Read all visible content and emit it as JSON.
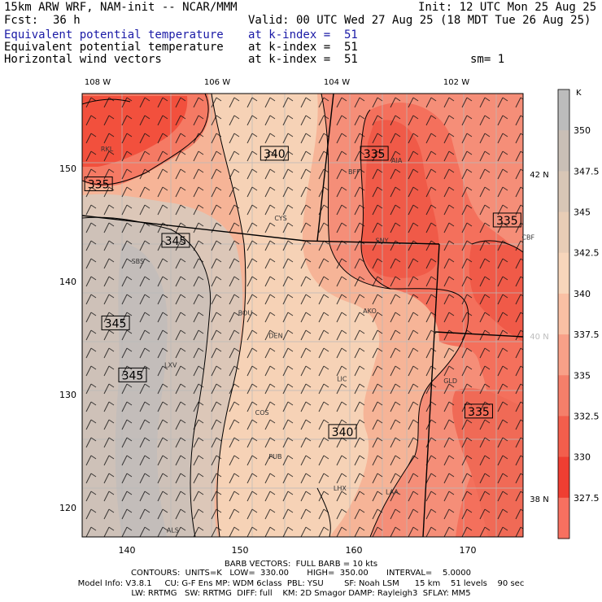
{
  "header": {
    "model_title": "15km ARW WRF, NAM-init -- NCAR/MMM",
    "init": "Init: 12 UTC Mon 25 Aug 25",
    "fcst_label": "Fcst:",
    "fcst_value": "36 h",
    "valid": "Valid: 00 UTC Wed 27 Aug 25 (18 MDT Tue 26 Aug 25)",
    "fields": [
      {
        "name": "Equivalent potential temperature",
        "level": "at k-index =  51",
        "color": "#1a1aa6"
      },
      {
        "name": "Equivalent potential temperature",
        "level": "at k-index =  51",
        "color": "#000000"
      },
      {
        "name": "Horizontal wind vectors",
        "level": "at k-index =  51",
        "color": "#000000"
      }
    ],
    "smoothing": "sm= 1"
  },
  "map": {
    "lon_labels": [
      "108 W",
      "106 W",
      "104 W",
      "102 W"
    ],
    "lat_labels": [
      "42 N",
      "40 N",
      "38 N"
    ],
    "x_ticks": [
      "140",
      "150",
      "160",
      "170"
    ],
    "y_ticks": [
      "150",
      "140",
      "130",
      "120"
    ],
    "contour_labels": [
      {
        "text": "340",
        "lon": 153,
        "lat": 151.3
      },
      {
        "text": "335",
        "lon": 161.8,
        "lat": 151.3
      },
      {
        "text": "335",
        "lon": 137.5,
        "lat": 148.6
      },
      {
        "text": "345",
        "lon": 144.3,
        "lat": 143.6
      },
      {
        "text": "335",
        "lon": 173.5,
        "lat": 145.4
      },
      {
        "text": "345",
        "lon": 139,
        "lat": 136.3
      },
      {
        "text": "345",
        "lon": 140.5,
        "lat": 131.7
      },
      {
        "text": "335",
        "lon": 171,
        "lat": 128.5
      },
      {
        "text": "340",
        "lon": 159,
        "lat": 126.7
      }
    ],
    "stations": [
      {
        "id": "RKL",
        "lon": 137.7,
        "lat": 151.5
      },
      {
        "id": "BFF",
        "lon": 159.5,
        "lat": 149.5
      },
      {
        "id": "AIA",
        "lon": 163.3,
        "lat": 150.5
      },
      {
        "id": "CYS",
        "lon": 153,
        "lat": 145.4
      },
      {
        "id": "SNY",
        "lon": 161.9,
        "lat": 143.4
      },
      {
        "id": "SBS",
        "lon": 140.4,
        "lat": 141.6
      },
      {
        "id": "CBF",
        "lon": 174.8,
        "lat": 143.7
      },
      {
        "id": "BOU",
        "lon": 149.8,
        "lat": 137
      },
      {
        "id": "AKO",
        "lon": 160.8,
        "lat": 137.2
      },
      {
        "id": "DEN",
        "lon": 152.5,
        "lat": 135
      },
      {
        "id": "LXV",
        "lon": 143.3,
        "lat": 132.4
      },
      {
        "id": "LIC",
        "lon": 158.5,
        "lat": 131.2
      },
      {
        "id": "GLD",
        "lon": 167.9,
        "lat": 131
      },
      {
        "id": "COS",
        "lon": 151.3,
        "lat": 128.2
      },
      {
        "id": "PUB",
        "lon": 152.5,
        "lat": 124.3
      },
      {
        "id": "LHX",
        "lon": 158.2,
        "lat": 121.5
      },
      {
        "id": "LAA",
        "lon": 162.8,
        "lat": 121.2
      },
      {
        "id": "ALS",
        "lon": 143.5,
        "lat": 117.8
      }
    ],
    "colors": {
      "very_warm_low": "#f04634",
      "low": "#f67a64",
      "mid": "#f8b495",
      "mid_high": "#f4d3b7",
      "high": "#d4c4b4",
      "highest": "#c3bebb"
    }
  },
  "colorbar": {
    "unit": "K",
    "ticks": [
      "350",
      "347.5",
      "345",
      "342.5",
      "340",
      "337.5",
      "335",
      "332.5",
      "330",
      "327.5"
    ],
    "colors": [
      "#bcbcbc",
      "#c9bfb6",
      "#d8c6b6",
      "#e8cdb6",
      "#f7d6bb",
      "#f9c0a4",
      "#f8a088",
      "#f57f6a",
      "#f35e4c",
      "#ef3e32",
      "#f77060"
    ]
  },
  "footer": {
    "barbs": "BARB VECTORS:  FULL BARB = 10 kts",
    "contours": "CONTOURS:  UNITS=K   LOW=  330.00       HIGH=  350.00       INTERVAL=    5.0000",
    "model_info": "Model Info: V3.8.1     CU: G-F Ens MP: WDM 6class  PBL: YSU        SF: Noah LSM      15 km    51 levels    90 sec",
    "physics": "LW: RRTMG   SW: RRTMG  DIFF: full    KM: 2D Smagor DAMP: Rayleigh3  SFLAY: MM5"
  }
}
